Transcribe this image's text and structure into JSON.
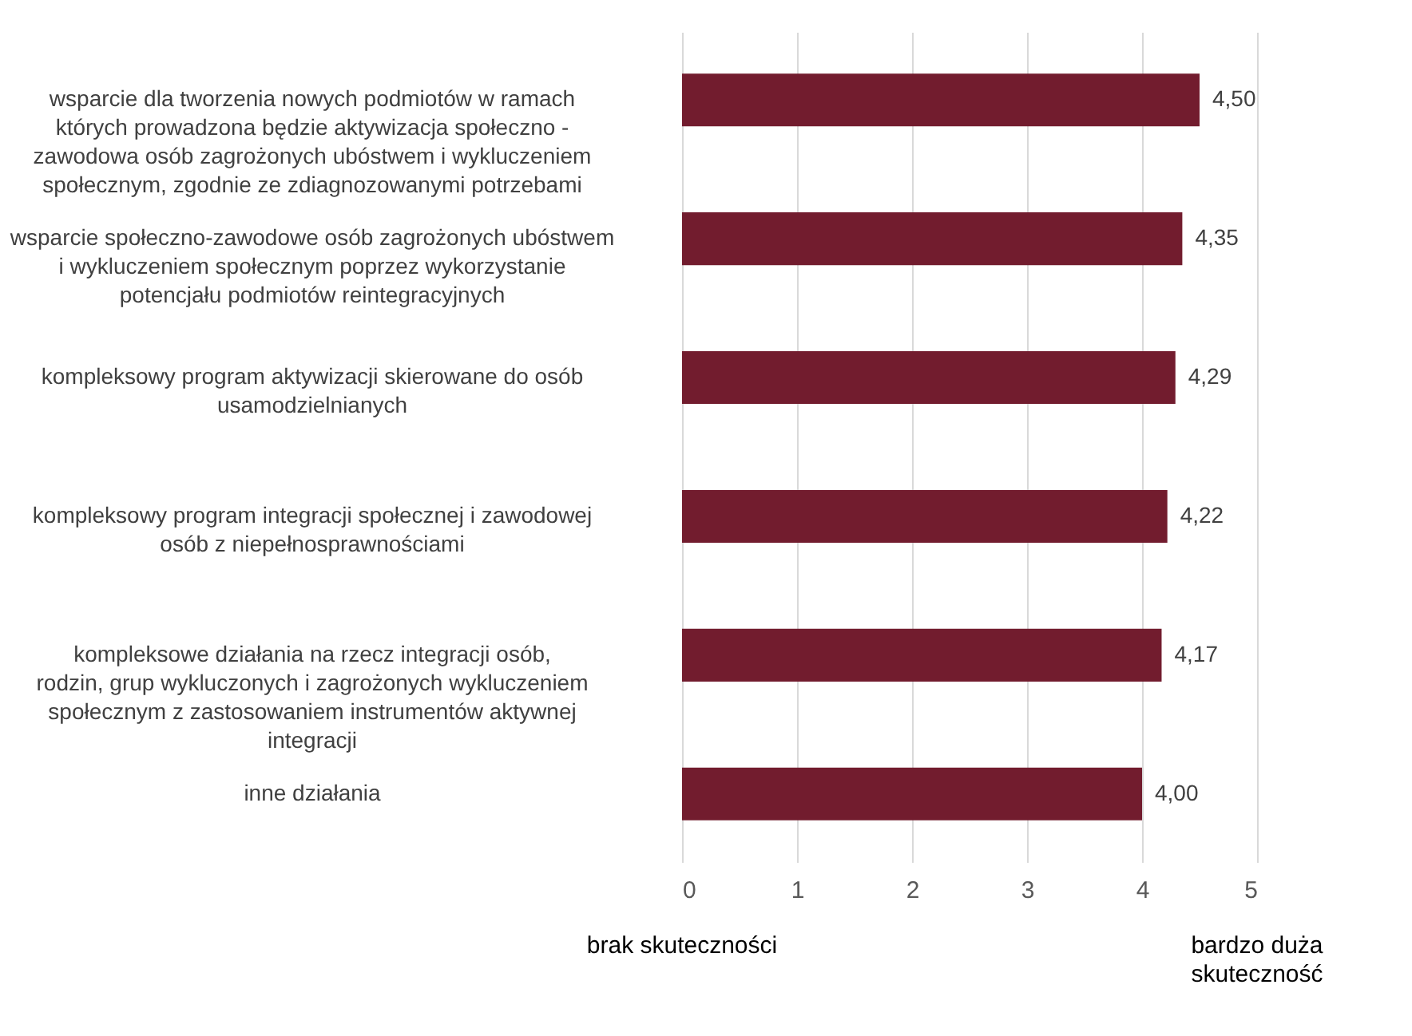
{
  "chart_data": {
    "type": "bar",
    "orientation": "horizontal",
    "categories": [
      "wsparcie dla tworzenia nowych podmiotów w ramach których prowadzona będzie aktywizacja społeczno - zawodowa osób zagrożonych ubóstwem i wykluczeniem społecznym, zgodnie ze zdiagnozowanymi potrzebami",
      "wsparcie społeczno-zawodowe osób zagrożonych ubóstwem i wykluczeniem społecznym poprzez wykorzystanie potencjału podmiotów reintegracyjnych",
      "kompleksowy program aktywizacji skierowane do osób usamodzielnianych",
      "kompleksowy program integracji społecznej i zawodowej osób z niepełnosprawnościami",
      "kompleksowe działania na rzecz integracji osób, rodzin, grup wykluczonych i zagrożonych wykluczeniem społecznym z zastosowaniem instrumentów aktywnej integracji",
      "inne działania"
    ],
    "values": [
      4.5,
      4.35,
      4.29,
      4.22,
      4.17,
      4.0
    ],
    "value_labels": [
      "4,50",
      "4,35",
      "4,29",
      "4,22",
      "4,17",
      "4,00"
    ],
    "color": "#721c2e",
    "xlim": [
      0,
      5
    ],
    "xticks": [
      0,
      1,
      2,
      3,
      4,
      5
    ],
    "grid": "x",
    "annotations": [
      "brak skuteczności",
      "bardzo duża skuteczność"
    ]
  }
}
